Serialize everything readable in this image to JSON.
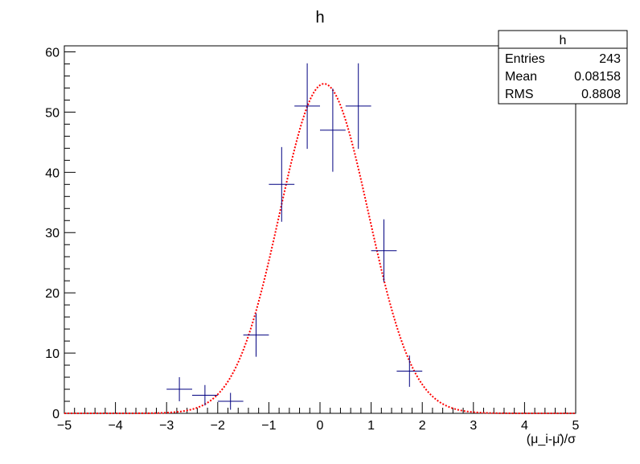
{
  "chart_data": {
    "type": "histogram-with-fit",
    "title": "h",
    "xlabel": "(μ_i-μ̄)/σ",
    "ylabel": "",
    "xlim": [
      -5,
      5
    ],
    "ylim": [
      0,
      61
    ],
    "x_ticks": [
      "-5",
      "-4",
      "-3",
      "-2",
      "-1",
      "0",
      "1",
      "2",
      "3",
      "4",
      "5"
    ],
    "y_ticks": [
      "0",
      "10",
      "20",
      "30",
      "40",
      "50",
      "60"
    ],
    "grid": false,
    "series": [
      {
        "kind": "histogram",
        "bin_width": 0.5,
        "x": [
          -2.75,
          -2.25,
          -1.75,
          -1.25,
          -0.75,
          -0.25,
          0.25,
          0.75,
          1.25,
          1.75
        ],
        "values": [
          4,
          3,
          2,
          13,
          38,
          51,
          47,
          51,
          27,
          7
        ],
        "errors": [
          2,
          1.7,
          1.4,
          3.6,
          6.2,
          7.1,
          6.9,
          7.1,
          5.2,
          2.6
        ],
        "color": "#000080"
      },
      {
        "kind": "fit",
        "function": "gaus",
        "constant": 54.7,
        "mean": 0.08,
        "sigma": 0.87,
        "color": "#ff0000",
        "style": "dotted"
      }
    ],
    "stats_box": {
      "title": "h",
      "rows": [
        {
          "label": "Entries",
          "value": "243"
        },
        {
          "label": "Mean",
          "value": "0.08158"
        },
        {
          "label": "RMS",
          "value": "0.8808"
        }
      ]
    }
  }
}
